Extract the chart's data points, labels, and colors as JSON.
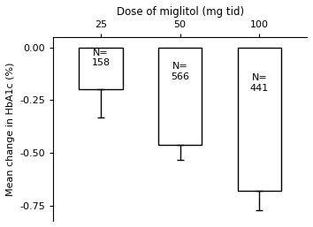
{
  "title": "Dose of miglitol (mg tid)",
  "ylabel": "Mean change in HbA1c (%)",
  "categories": [
    "25",
    "50",
    "100"
  ],
  "values": [
    -0.2,
    -0.46,
    -0.68
  ],
  "errors_down": [
    0.13,
    0.07,
    0.09
  ],
  "ns": [
    "N=\n158",
    "N=\n566",
    "N=\n441"
  ],
  "ylim": [
    -0.82,
    0.05
  ],
  "yticks": [
    0.0,
    -0.25,
    -0.5,
    -0.75
  ],
  "bar_facecolor": "white",
  "bar_edgecolor": "black",
  "bar_linewidth": 1.0,
  "errorbar_color": "black",
  "errorbar_capsize": 3,
  "errorbar_linewidth": 1.0,
  "background_color": "white",
  "title_fontsize": 8.5,
  "axis_label_fontsize": 8,
  "tick_fontsize": 8,
  "annotation_fontsize": 8,
  "bar_width": 0.55
}
